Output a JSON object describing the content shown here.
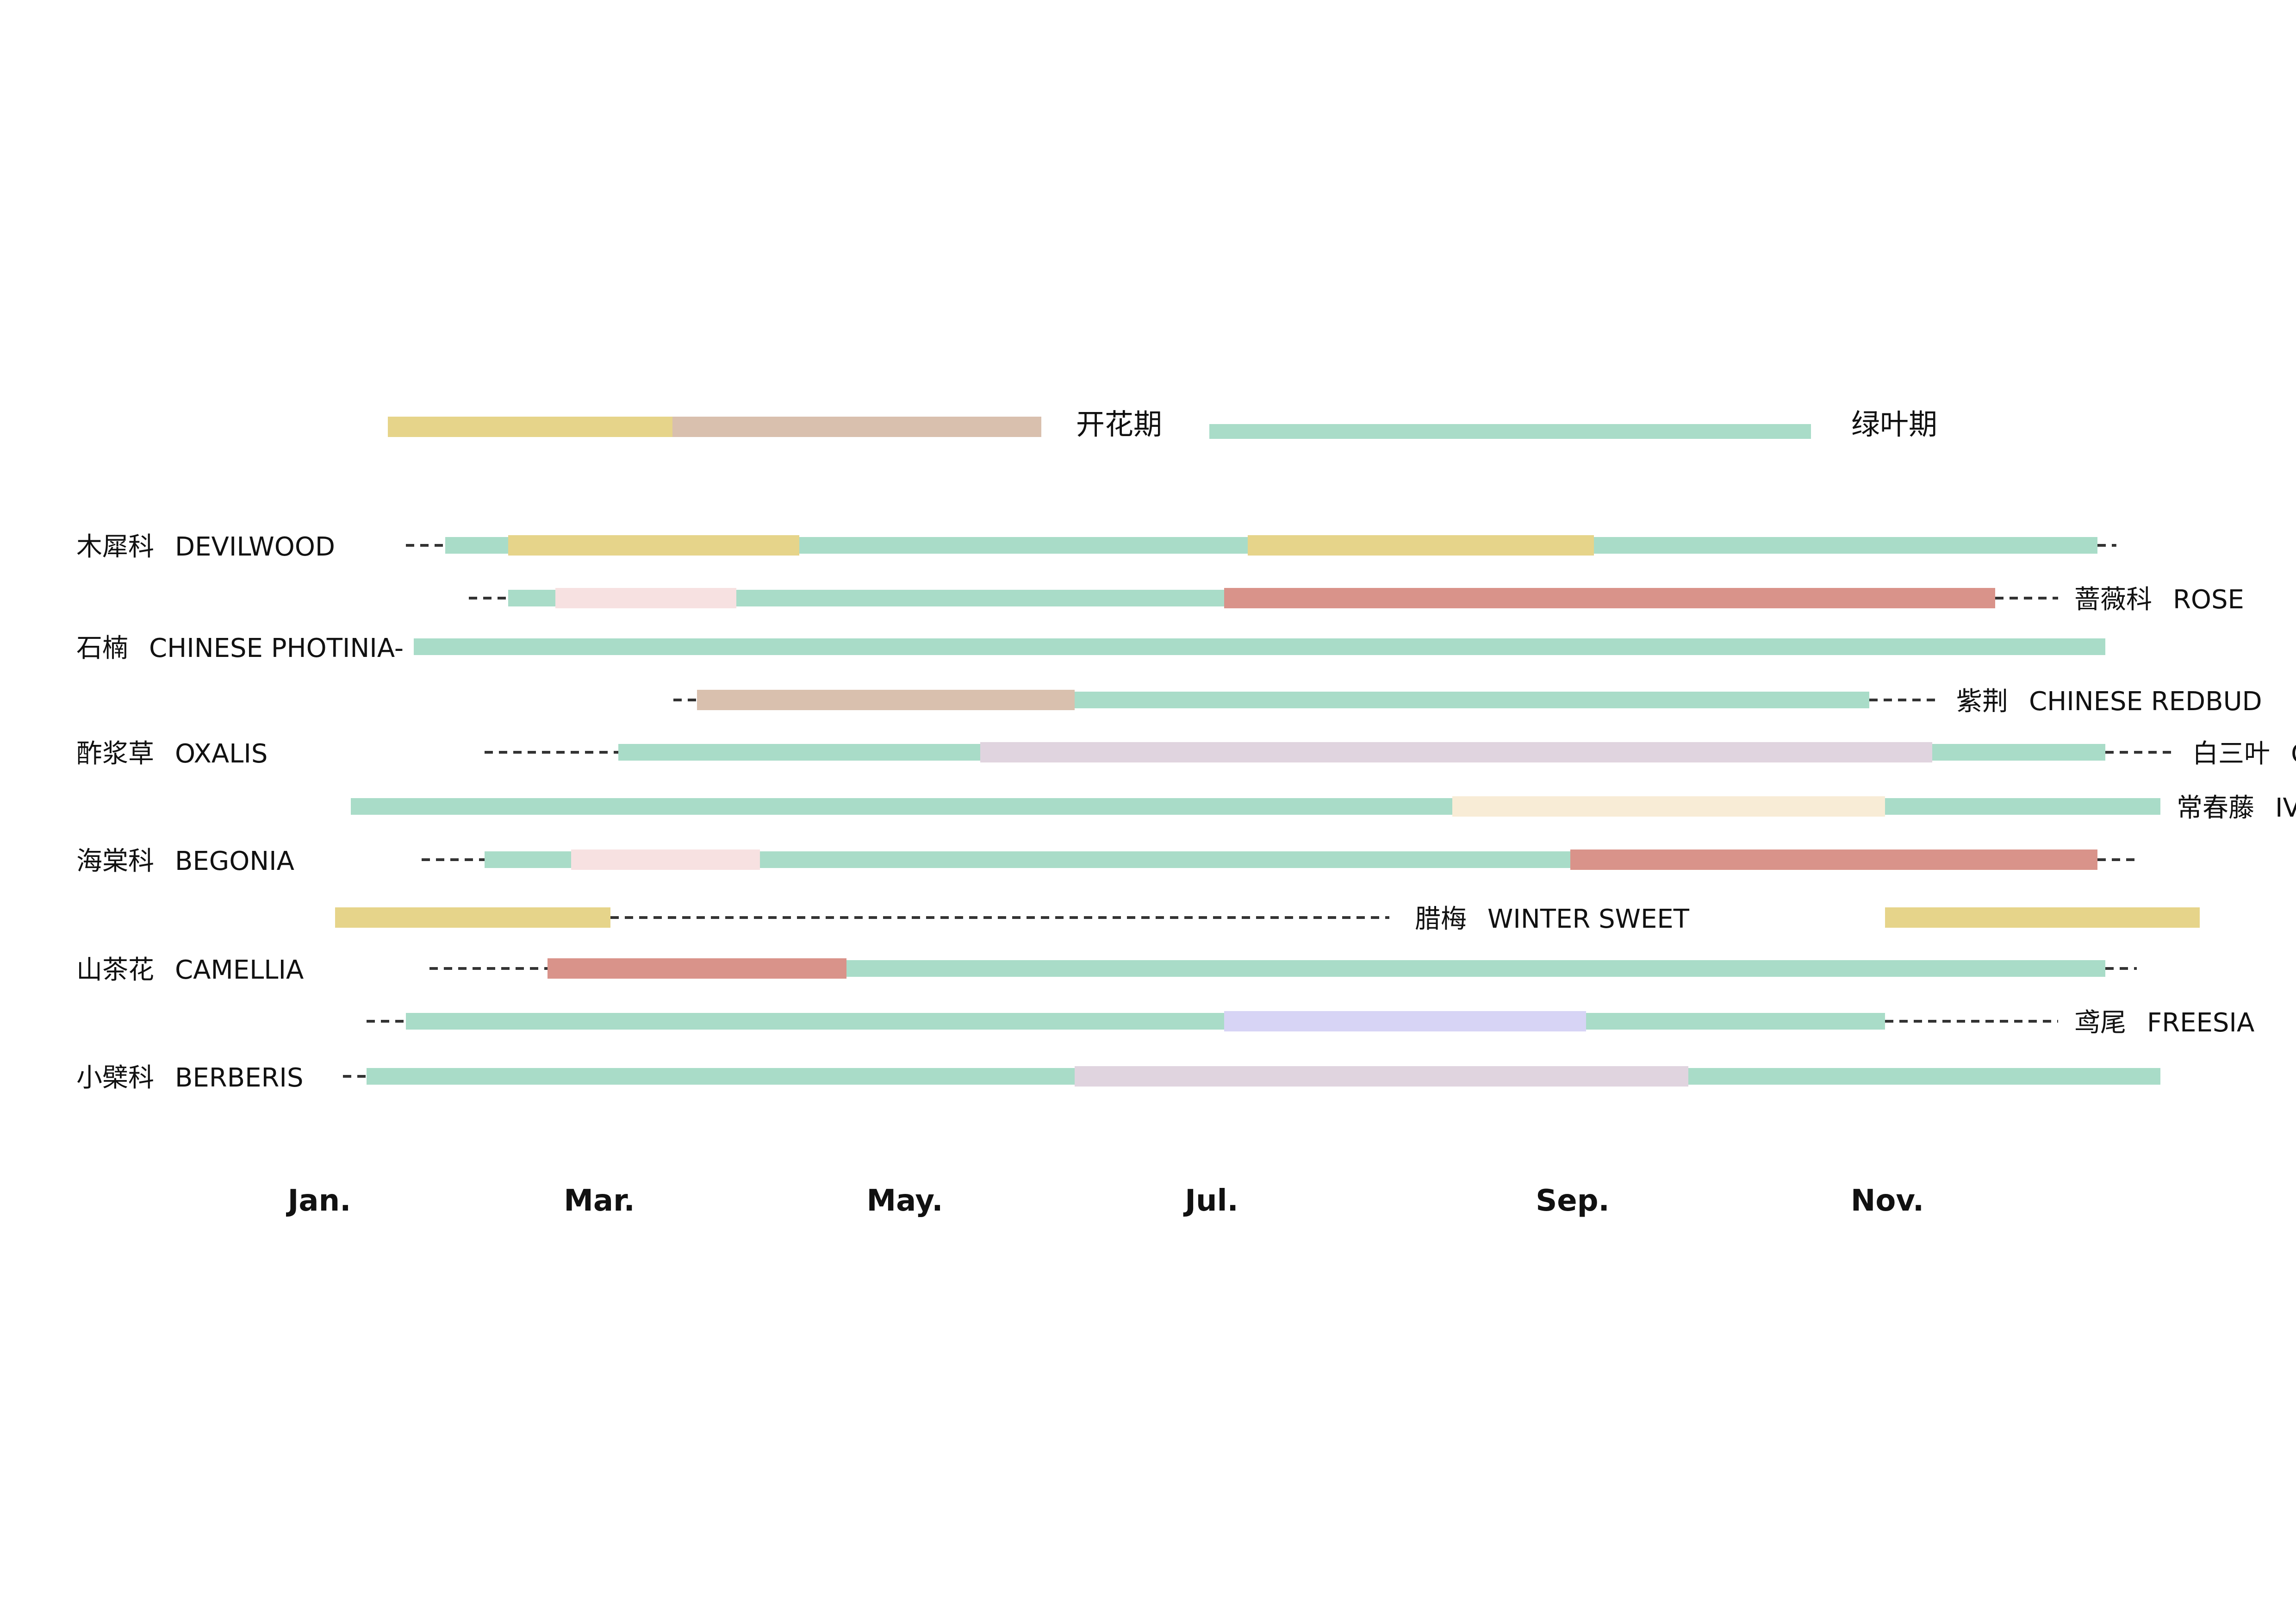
{
  "legend": [
    {
      "label": "开花期",
      "colors": [
        "#e6d48a",
        "#d9c0ae"
      ]
    },
    {
      "label": "绿叶期",
      "colors": [
        "#a9dcc8"
      ]
    }
  ],
  "axis": {
    "months": [
      "Jan.",
      "Mar.",
      "May.",
      "Jul.",
      "Sep.",
      "Nov."
    ],
    "month_start": 1,
    "month_end": 12
  },
  "colors": {
    "leaf": "#a9dcc8",
    "yellow": "#e6d48a",
    "tan": "#d9c0ae",
    "pink": "#f7e1e1",
    "salmon": "#d9938a",
    "lilac": "#e0d4df",
    "cream": "#f8ecd6",
    "lavender": "#d7d4f5",
    "dash": "#333333"
  },
  "plants": [
    {
      "cn": "木犀科",
      "en": "DEVILWOOD",
      "side": "left",
      "dash": [
        [
          1.55,
          1.8
        ],
        [
          12.3,
          12.42
        ]
      ],
      "leaf": [
        [
          1.8,
          12.3
        ]
      ],
      "flower": [
        [
          2.2,
          4.05,
          "yellow"
        ],
        [
          6.9,
          9.1,
          "yellow"
        ]
      ]
    },
    {
      "cn": "蔷薇科",
      "en": "ROSE",
      "side": "right",
      "dash": [
        [
          1.95,
          2.2
        ],
        [
          11.65,
          12.05
        ]
      ],
      "leaf": [
        [
          2.2,
          11.65
        ]
      ],
      "flower": [
        [
          2.5,
          3.65,
          "pink"
        ],
        [
          6.75,
          11.65,
          "salmon"
        ]
      ]
    },
    {
      "cn": "石楠",
      "en": "CHINESE PHOTINIA-",
      "side": "left",
      "dash": [],
      "leaf": [
        [
          1.6,
          12.35
        ]
      ],
      "flower": []
    },
    {
      "cn": "紫荆",
      "en": "CHINESE REDBUD",
      "side": "right",
      "dash": [
        [
          3.25,
          3.4
        ],
        [
          10.85,
          11.3
        ]
      ],
      "leaf": [
        [
          3.4,
          10.85
        ]
      ],
      "flower": [
        [
          3.4,
          5.8,
          "tan"
        ]
      ]
    },
    {
      "cn": "酢浆草",
      "en": "OXALIS",
      "side": "left",
      "dash": [
        [
          2.05,
          2.9
        ]
      ],
      "leaf": [
        [
          2.9,
          12.35
        ]
      ],
      "flower": []
    },
    {
      "cn": "白三叶",
      "en": "CLOVER",
      "side": "right",
      "dash": [
        [
          12.35,
          12.8
        ]
      ],
      "leaf": [],
      "flower": [
        [
          5.2,
          11.25,
          "lilac"
        ]
      ]
    },
    {
      "cn": "常春藤",
      "en": "IVY",
      "side": "right",
      "dash": [],
      "leaf": [
        [
          1.2,
          12.7
        ]
      ],
      "flower": [
        [
          8.2,
          10.95,
          "cream"
        ]
      ]
    },
    {
      "cn": "海棠科",
      "en": "BEGONIA",
      "side": "left",
      "dash": [
        [
          1.65,
          2.05
        ],
        [
          12.3,
          12.55
        ]
      ],
      "leaf": [
        [
          2.05,
          12.3
        ]
      ],
      "flower": [
        [
          2.6,
          3.8,
          "pink"
        ],
        [
          8.95,
          12.3,
          "salmon"
        ]
      ]
    },
    {
      "cn": "腊梅",
      "en": "WINTER SWEET",
      "side": "mid",
      "dash": [
        [
          2.85,
          7.8
        ]
      ],
      "leaf": [],
      "flower": [
        [
          1.1,
          2.85,
          "yellow"
        ],
        [
          10.95,
          12.95,
          "yellow"
        ]
      ]
    },
    {
      "cn": "山茶花",
      "en": "CAMELLIA",
      "side": "left",
      "dash": [
        [
          1.7,
          2.45
        ],
        [
          12.35,
          12.55
        ]
      ],
      "leaf": [
        [
          4.35,
          12.35
        ]
      ],
      "flower": [
        [
          2.45,
          4.35,
          "salmon"
        ]
      ]
    },
    {
      "cn": "鸢尾",
      "en": "FREESIA",
      "side": "right",
      "dash": [
        [
          1.3,
          1.55
        ],
        [
          10.95,
          12.05
        ]
      ],
      "leaf": [
        [
          1.55,
          10.95
        ]
      ],
      "flower": [
        [
          6.75,
          9.05,
          "lavender"
        ]
      ]
    },
    {
      "cn": "小檗科",
      "en": "BERBERIS",
      "side": "left",
      "dash": [
        [
          1.15,
          1.3
        ]
      ],
      "leaf": [
        [
          1.3,
          12.7
        ]
      ],
      "flower": [
        [
          5.8,
          9.7,
          "lilac"
        ]
      ]
    }
  ]
}
